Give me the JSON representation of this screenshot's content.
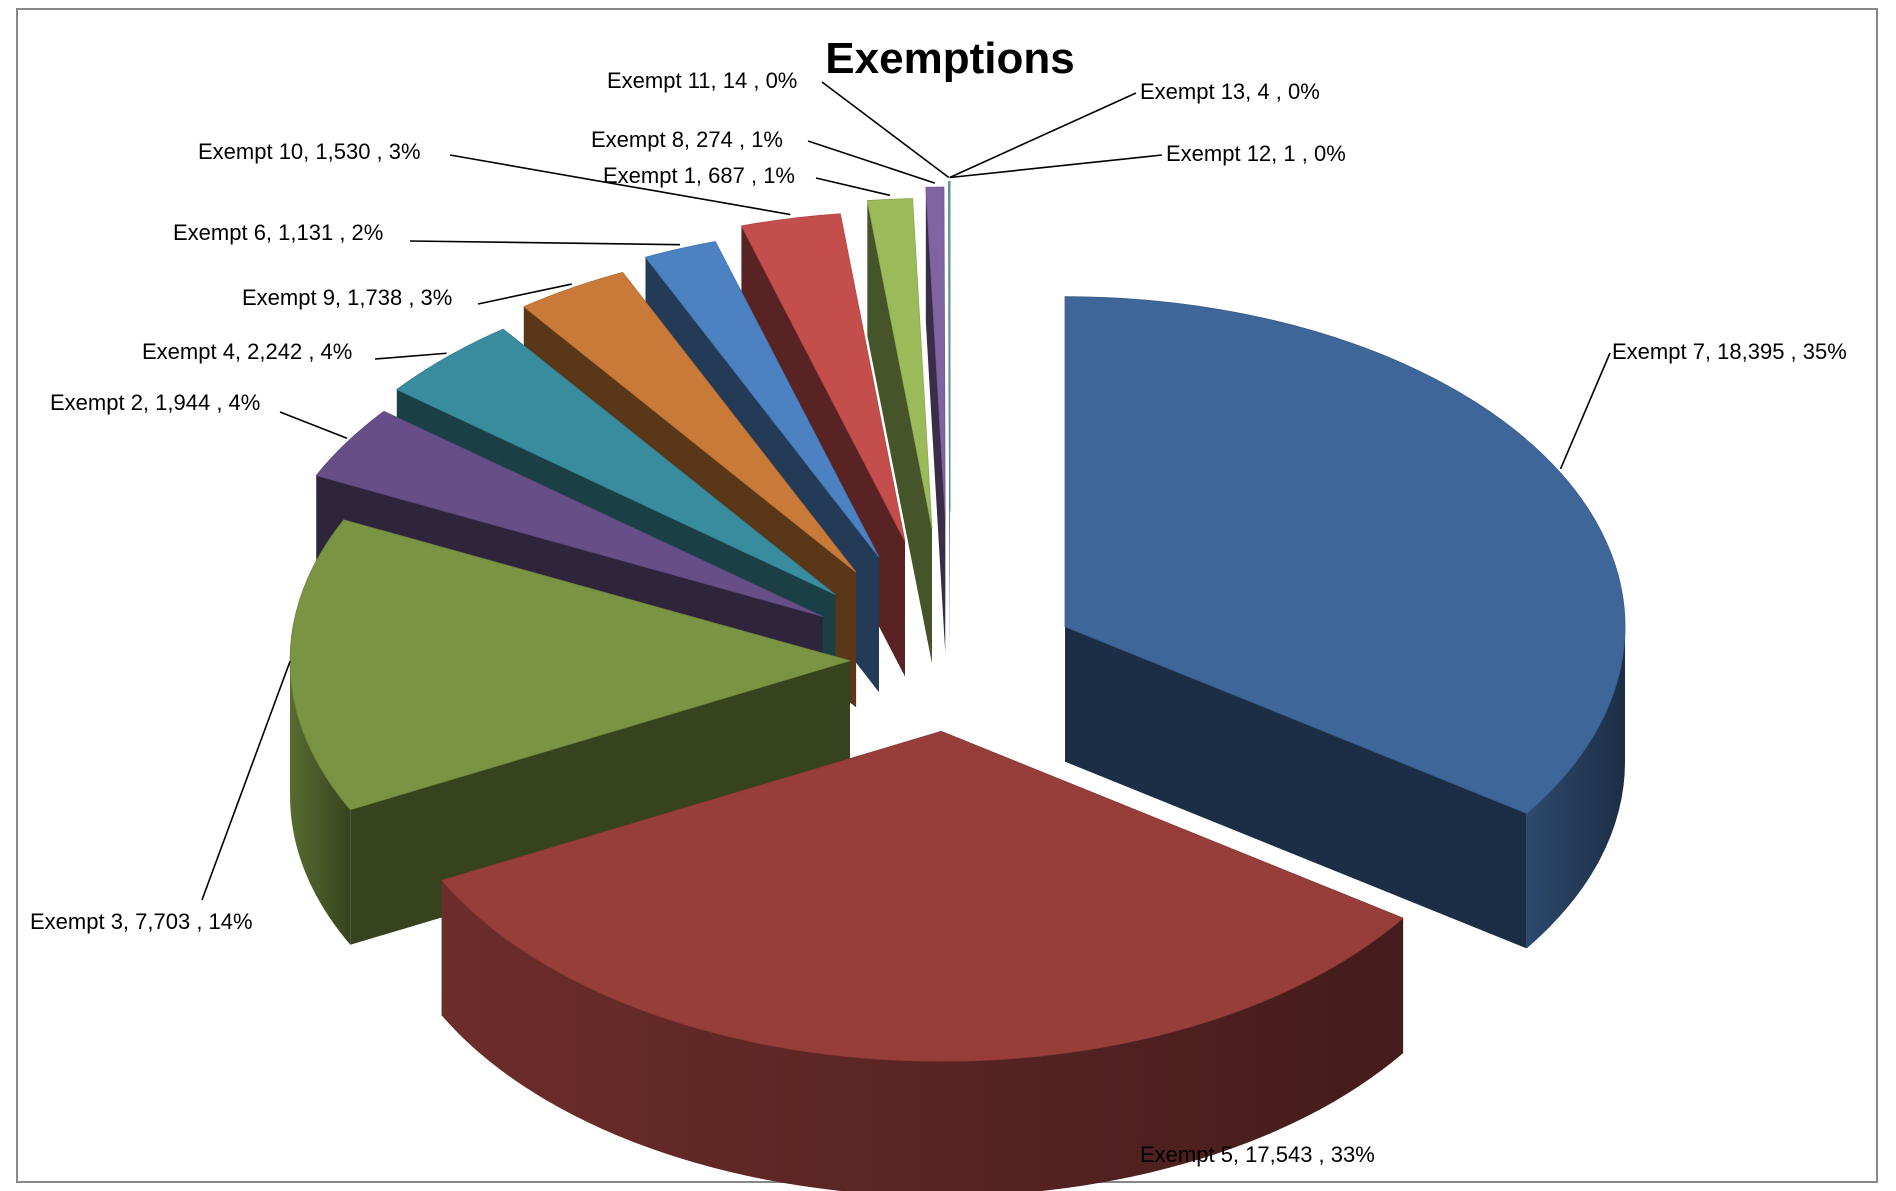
{
  "chart_data": {
    "type": "pie",
    "title": "Exemptions",
    "style": "3d-exploded",
    "slices": [
      {
        "name": "Exempt 7",
        "value": 18395,
        "percent": "35%",
        "value_text": "18,395",
        "color": "#3E6699",
        "label": "Exempt 7,  18,395 , 35%"
      },
      {
        "name": "Exempt 5",
        "value": 17543,
        "percent": "33%",
        "value_text": "17,543",
        "color": "#973E3B",
        "label": "Exempt 5,  17,543 , 33%"
      },
      {
        "name": "Exempt 3",
        "value": 7703,
        "percent": "14%",
        "value_text": "7,703",
        "color": "#7A9443",
        "label": "Exempt 3,  7,703 , 14%"
      },
      {
        "name": "Exempt 2",
        "value": 1944,
        "percent": "4%",
        "value_text": "1,944",
        "color": "#664F86",
        "label": "Exempt 2,  1,944 , 4%"
      },
      {
        "name": "Exempt 4",
        "value": 2242,
        "percent": "4%",
        "value_text": "2,242",
        "color": "#398C9E",
        "label": "Exempt 4,  2,242 , 4%"
      },
      {
        "name": "Exempt 9",
        "value": 1738,
        "percent": "3%",
        "value_text": "1,738",
        "color": "#C97A38",
        "label": "Exempt 9,  1,738 , 3%"
      },
      {
        "name": "Exempt 6",
        "value": 1131,
        "percent": "2%",
        "value_text": "1,131",
        "color": "#4D82C2",
        "label": "Exempt 6,  1,131 , 2%"
      },
      {
        "name": "Exempt 10",
        "value": 1530,
        "percent": "3%",
        "value_text": "1,530",
        "color": "#C44E4B",
        "label": "Exempt 10,  1,530 , 3%"
      },
      {
        "name": "Exempt 1",
        "value": 687,
        "percent": "1%",
        "value_text": "687",
        "color": "#9BBB5B",
        "label": "Exempt 1,  687 , 1%"
      },
      {
        "name": "Exempt 8",
        "value": 274,
        "percent": "1%",
        "value_text": "274",
        "color": "#8064A2",
        "label": "Exempt 8,  274 , 1%"
      },
      {
        "name": "Exempt 11",
        "value": 14,
        "percent": "0%",
        "value_text": "14",
        "color": "#4BACC6",
        "label": "Exempt 11,  14 , 0%"
      },
      {
        "name": "Exempt 13",
        "value": 4,
        "percent": "0%",
        "value_text": "4",
        "color": "#F79646",
        "label": "Exempt 13,  4 , 0%"
      },
      {
        "name": "Exempt 12",
        "value": 1,
        "percent": "0%",
        "value_text": "1",
        "color": "#2C4D75",
        "label": "Exempt 12,  1 , 0%"
      }
    ]
  }
}
